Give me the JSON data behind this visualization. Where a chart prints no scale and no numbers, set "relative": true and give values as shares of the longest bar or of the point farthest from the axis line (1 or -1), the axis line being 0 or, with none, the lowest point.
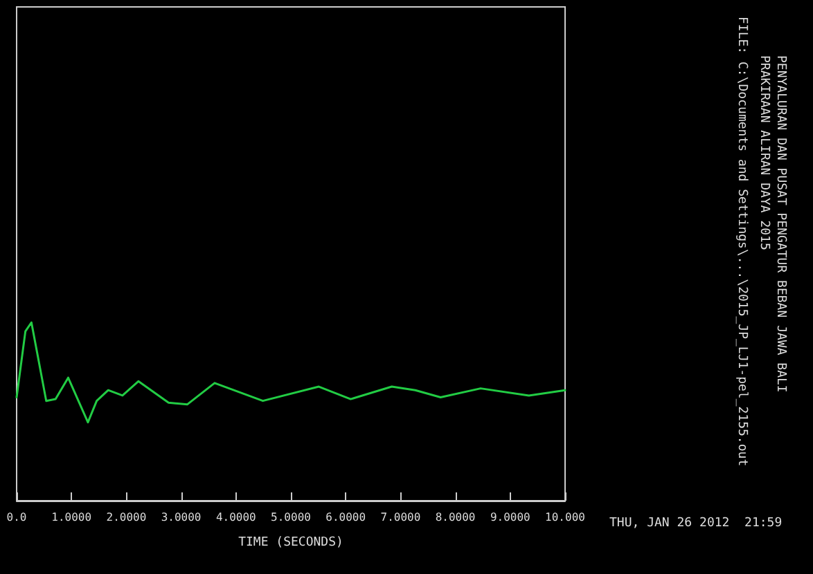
{
  "chart_data": {
    "type": "line",
    "title": "PENYALURAN DAN PUSAT PENGATUR BEBAN JAWA BALI",
    "subtitle": "PRAKIRAAN ALIRAN DAYA 2015",
    "xlabel": "TIME (SECONDS)",
    "relative": true,
    "xlim": [
      0,
      10
    ],
    "xticks": [
      {
        "value": 0,
        "label": "0.0"
      },
      {
        "value": 1,
        "label": "1.0000"
      },
      {
        "value": 2,
        "label": "2.0000"
      },
      {
        "value": 3,
        "label": "3.0000"
      },
      {
        "value": 4,
        "label": "4.0000"
      },
      {
        "value": 5,
        "label": "5.0000"
      },
      {
        "value": 6,
        "label": "6.0000"
      },
      {
        "value": 7,
        "label": "7.0000"
      },
      {
        "value": 8,
        "label": "8.0000"
      },
      {
        "value": 9,
        "label": "9.0000"
      },
      {
        "value": 10,
        "label": "10.000"
      }
    ],
    "annotations": [
      "FILE: C:\\Documents and Settings\\...\\2015_JP_LJ1-pel_2155.out",
      "THU, JAN 26 2012  21:59"
    ],
    "marker": "none",
    "line_style": "solid",
    "series": [
      {
        "color": "#22cc44",
        "x": [
          0,
          0.16,
          0.27,
          0.54,
          0.71,
          0.94,
          1.3,
          1.46,
          1.67,
          1.93,
          2.22,
          2.77,
          3.11,
          3.61,
          4.49,
          5.51,
          6.09,
          6.84,
          7.27,
          7.73,
          8.46,
          9.34,
          10
        ],
        "values": [
          0.58,
          0.95,
          1,
          0.56,
          0.57,
          0.69,
          0.44,
          0.56,
          0.62,
          0.59,
          0.67,
          0.55,
          0.54,
          0.66,
          0.56,
          0.64,
          0.57,
          0.64,
          0.62,
          0.58,
          0.63,
          0.59,
          0.62
        ]
      }
    ]
  }
}
